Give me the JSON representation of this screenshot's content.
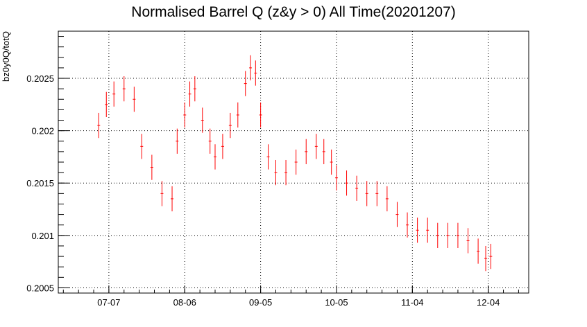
{
  "chart_data": {
    "type": "scatter",
    "title": "Normalised Barrel Q (z&y > 0) All Time(20201207)",
    "xlabel": "",
    "ylabel": "bz0y0Q/totQ",
    "x_is_date": true,
    "xlim": [
      "2020-06-17",
      "2020-12-20"
    ],
    "ylim": [
      0.20045,
      0.20295
    ],
    "grid": true,
    "legend": "none",
    "x_ticks": [
      {
        "date": "2020-07-07",
        "label": "07-07"
      },
      {
        "date": "2020-08-06",
        "label": "08-06"
      },
      {
        "date": "2020-09-05",
        "label": "09-05"
      },
      {
        "date": "2020-10-05",
        "label": "10-05"
      },
      {
        "date": "2020-11-04",
        "label": "11-04"
      },
      {
        "date": "2020-12-04",
        "label": "12-04"
      }
    ],
    "y_ticks": [
      {
        "value": 0.2005,
        "label": "0.2005"
      },
      {
        "value": 0.201,
        "label": "0.201"
      },
      {
        "value": 0.2015,
        "label": "0.2015"
      },
      {
        "value": 0.202,
        "label": "0.202"
      },
      {
        "value": 0.2025,
        "label": "0.2025"
      }
    ],
    "series": [
      {
        "color": "#ff0000",
        "marker": "error-bar",
        "x": [
          "2020-07-03",
          "2020-07-06",
          "2020-07-09",
          "2020-07-13",
          "2020-07-17",
          "2020-07-20",
          "2020-07-24",
          "2020-07-28",
          "2020-08-01",
          "2020-08-03",
          "2020-08-06",
          "2020-08-08",
          "2020-08-10",
          "2020-08-13",
          "2020-08-16",
          "2020-08-18",
          "2020-08-21",
          "2020-08-24",
          "2020-08-27",
          "2020-08-30",
          "2020-09-01",
          "2020-09-03",
          "2020-09-05",
          "2020-09-08",
          "2020-09-11",
          "2020-09-15",
          "2020-09-19",
          "2020-09-23",
          "2020-09-27",
          "2020-09-30",
          "2020-10-03",
          "2020-10-05",
          "2020-10-09",
          "2020-10-13",
          "2020-10-17",
          "2020-10-21",
          "2020-10-25",
          "2020-10-29",
          "2020-11-02",
          "2020-11-06",
          "2020-11-10",
          "2020-11-14",
          "2020-11-18",
          "2020-11-22",
          "2020-11-26",
          "2020-11-30",
          "2020-12-03",
          "2020-12-05"
        ],
        "y": [
          0.20205,
          0.20225,
          0.20235,
          0.2024,
          0.2023,
          0.20185,
          0.20165,
          0.2014,
          0.20135,
          0.2019,
          0.20215,
          0.20235,
          0.2024,
          0.2021,
          0.2019,
          0.20175,
          0.20185,
          0.20205,
          0.20215,
          0.20245,
          0.2026,
          0.20255,
          0.20215,
          0.20175,
          0.2016,
          0.2016,
          0.2017,
          0.2018,
          0.20185,
          0.2018,
          0.2017,
          0.20155,
          0.2015,
          0.20145,
          0.2014,
          0.2014,
          0.20135,
          0.2012,
          0.2011,
          0.20105,
          0.20105,
          0.201,
          0.201,
          0.201,
          0.20095,
          0.20085,
          0.20078,
          0.2008
        ],
        "err": [
          0.00012,
          0.00012,
          0.00012,
          0.00012,
          0.00012,
          0.00012,
          0.00012,
          0.00012,
          0.00012,
          0.00012,
          0.00012,
          0.00012,
          0.00012,
          0.00012,
          0.00012,
          0.00012,
          0.00012,
          0.00012,
          0.00012,
          0.00012,
          0.00012,
          0.00012,
          0.00012,
          0.00012,
          0.00012,
          0.00012,
          0.00012,
          0.00012,
          0.00012,
          0.00012,
          0.00012,
          0.00012,
          0.00012,
          0.00012,
          0.00012,
          0.00012,
          0.00012,
          0.00012,
          0.00012,
          0.00012,
          0.00012,
          0.00012,
          0.00012,
          0.00012,
          0.00012,
          0.00012,
          0.00012,
          0.00012
        ]
      }
    ]
  }
}
